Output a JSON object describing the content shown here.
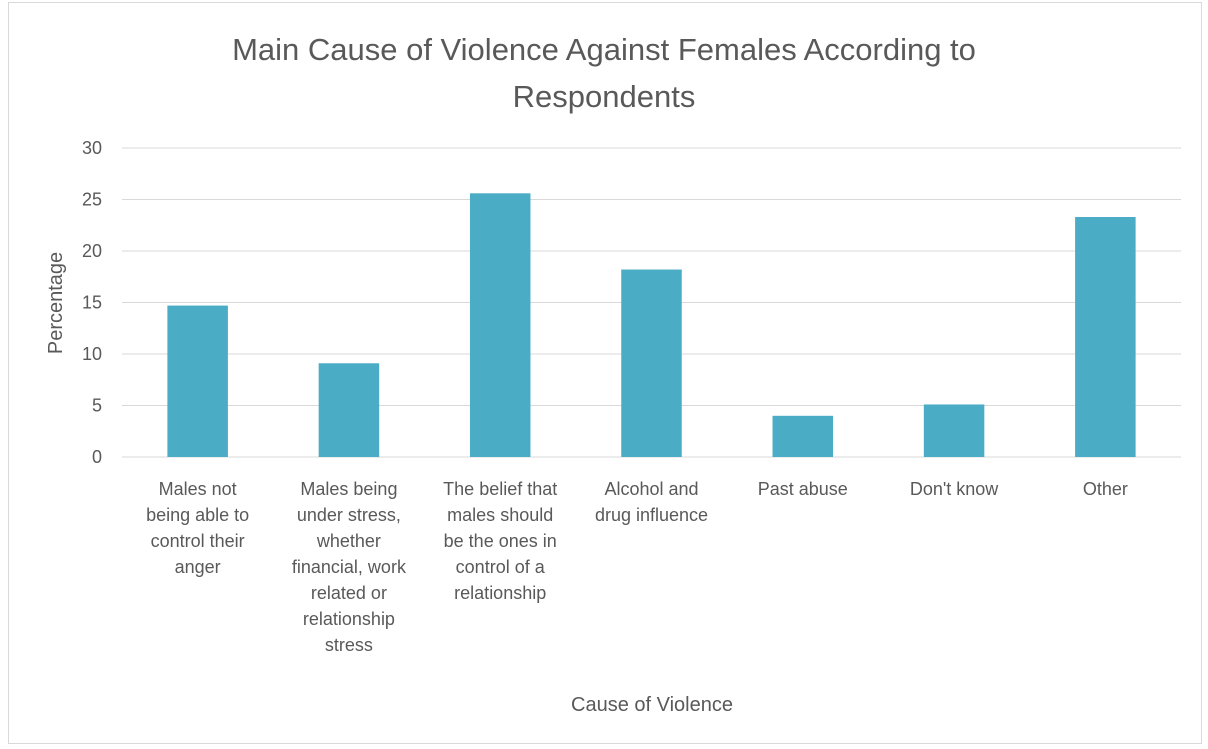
{
  "chart_data": {
    "type": "bar",
    "title": "Main Cause of Violence Against Females According to Respondents",
    "title_lines": [
      "Main Cause of Violence Against Females According to",
      "Respondents"
    ],
    "xlabel": "Cause of Violence",
    "ylabel": "Percentage",
    "ylim": [
      0,
      30
    ],
    "yticks": [
      0,
      5,
      10,
      15,
      20,
      25,
      30
    ],
    "grid": true,
    "legend": "none",
    "bar_color": "#4bacc6",
    "categories": [
      "Males not being able to control their anger",
      "Males being under stress, whether financial, work related or relationship stress",
      "The belief that males should be the ones in control of a relationship",
      "Alcohol and drug influence",
      "Past abuse",
      "Don't know",
      "Other"
    ],
    "category_lines": [
      [
        "Males not",
        "being able to",
        "control their",
        "anger"
      ],
      [
        "Males being",
        "under stress,",
        "whether",
        "financial, work",
        "related or",
        "relationship",
        "stress"
      ],
      [
        "The belief that",
        "males should",
        "be the ones in",
        "control of a",
        "relationship"
      ],
      [
        "Alcohol and",
        "drug influence"
      ],
      [
        "Past abuse"
      ],
      [
        "Don't know"
      ],
      [
        "Other"
      ]
    ],
    "values": [
      14.7,
      9.1,
      25.6,
      18.2,
      4.0,
      5.1,
      23.3
    ]
  }
}
